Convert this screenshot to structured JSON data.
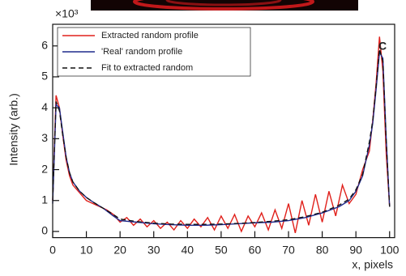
{
  "chart_data": {
    "type": "line",
    "annotation": "C",
    "y_multiplier": "×10³",
    "y_label": "Intensity (arb.)",
    "x_label": "x, pixels",
    "xlim": [
      0,
      101.5
    ],
    "ylim": [
      -0.2,
      6.7
    ],
    "xticks": [
      0,
      10,
      20,
      30,
      40,
      50,
      60,
      70,
      80,
      90,
      100
    ],
    "yticks": [
      0,
      1,
      2,
      3,
      4,
      5,
      6
    ],
    "legend": "upper left",
    "series": [
      {
        "name": "Extracted random profile",
        "color": "#e0201b",
        "dash": "solid",
        "x": [
          0,
          1,
          2,
          3,
          4,
          5,
          6,
          8,
          10,
          12,
          14,
          16,
          18,
          20,
          22,
          24,
          26,
          28,
          30,
          32,
          34,
          36,
          38,
          40,
          42,
          44,
          46,
          48,
          50,
          52,
          54,
          56,
          58,
          60,
          62,
          64,
          66,
          68,
          70,
          72,
          74,
          76,
          78,
          80,
          82,
          84,
          86,
          88,
          90,
          92,
          94,
          95,
          96,
          97,
          98,
          99,
          100
        ],
        "values": [
          1.0,
          4.4,
          4.0,
          3.1,
          2.3,
          1.8,
          1.5,
          1.25,
          1.0,
          0.9,
          0.8,
          0.7,
          0.55,
          0.3,
          0.45,
          0.2,
          0.4,
          0.15,
          0.35,
          0.1,
          0.3,
          0.05,
          0.35,
          0.1,
          0.4,
          0.15,
          0.45,
          0.05,
          0.5,
          0.1,
          0.55,
          0.0,
          0.5,
          0.15,
          0.6,
          0.05,
          0.7,
          0.1,
          0.9,
          -0.05,
          1.0,
          0.2,
          1.2,
          0.3,
          1.3,
          0.5,
          1.5,
          0.9,
          1.2,
          2.0,
          2.6,
          3.6,
          4.8,
          6.3,
          5.2,
          2.5,
          0.8
        ]
      },
      {
        "name": "'Real' random profile",
        "color": "#1f2a8c",
        "dash": "solid",
        "x": [
          0,
          1,
          2,
          3,
          4,
          5,
          6,
          8,
          10,
          12,
          15,
          18,
          20,
          25,
          30,
          35,
          40,
          45,
          50,
          55,
          60,
          65,
          70,
          75,
          80,
          85,
          88,
          90,
          92,
          94,
          95,
          96,
          97,
          98,
          99,
          100
        ],
        "values": [
          0.9,
          4.1,
          4.0,
          3.2,
          2.4,
          1.9,
          1.6,
          1.3,
          1.1,
          0.95,
          0.75,
          0.5,
          0.35,
          0.3,
          0.25,
          0.22,
          0.2,
          0.2,
          0.22,
          0.25,
          0.28,
          0.3,
          0.35,
          0.45,
          0.6,
          0.8,
          1.0,
          1.3,
          1.8,
          2.8,
          3.5,
          4.6,
          5.8,
          5.6,
          3.0,
          0.8
        ]
      },
      {
        "name": "Fit to extracted random",
        "color": "#111111",
        "dash": "dashed",
        "x": [
          0,
          1,
          2,
          3,
          4,
          5,
          6,
          8,
          10,
          12,
          15,
          18,
          20,
          25,
          30,
          35,
          40,
          45,
          50,
          55,
          60,
          65,
          70,
          75,
          80,
          85,
          88,
          90,
          92,
          94,
          95,
          96,
          97,
          98,
          99,
          100
        ],
        "values": [
          1.0,
          4.2,
          3.9,
          3.1,
          2.4,
          1.9,
          1.6,
          1.3,
          1.1,
          0.95,
          0.75,
          0.55,
          0.4,
          0.32,
          0.27,
          0.24,
          0.23,
          0.23,
          0.24,
          0.26,
          0.29,
          0.33,
          0.38,
          0.48,
          0.62,
          0.85,
          1.05,
          1.35,
          1.85,
          2.9,
          3.6,
          4.7,
          5.9,
          5.5,
          2.9,
          0.8
        ]
      }
    ]
  }
}
